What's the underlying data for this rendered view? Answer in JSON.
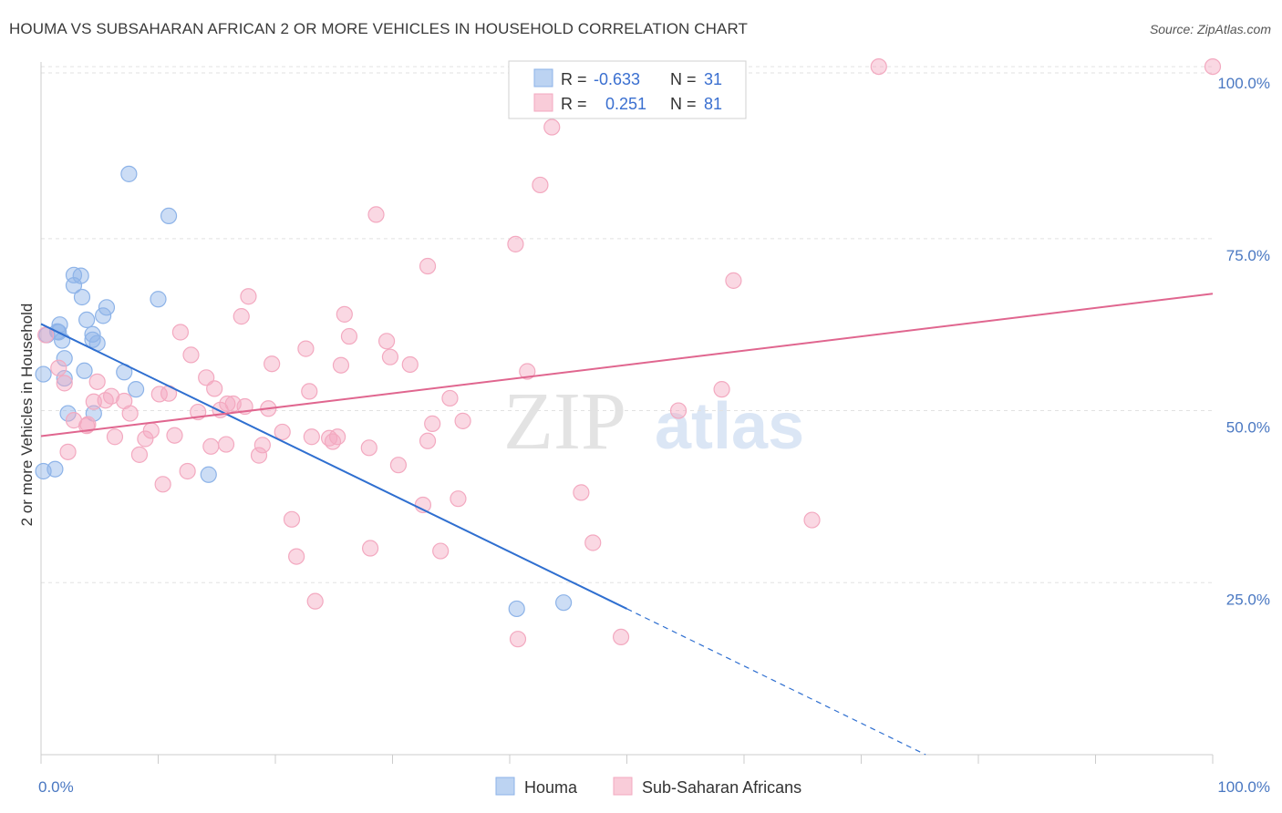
{
  "title": "HOUMA VS SUBSAHARAN AFRICAN 2 OR MORE VEHICLES IN HOUSEHOLD CORRELATION CHART",
  "source": "Source: ZipAtlas.com",
  "watermark": {
    "zip": "ZIP",
    "atlas": "atlas"
  },
  "chart_data": {
    "type": "scatter",
    "ylabel": "2 or more Vehicles in Household",
    "xlim": [
      0,
      100
    ],
    "ylim": [
      0,
      102
    ],
    "x_tick_labels": [
      {
        "value": 0,
        "label": "0.0%"
      },
      {
        "value": 100,
        "label": "100.0%"
      }
    ],
    "y_tick_labels": [
      {
        "value": 25,
        "label": "25.0%"
      },
      {
        "value": 50,
        "label": "50.0%"
      },
      {
        "value": 75,
        "label": "75.0%"
      },
      {
        "value": 100,
        "label": "100.0%"
      }
    ],
    "legend_stats": [
      {
        "r_label": "R =",
        "r": "-0.633",
        "n_label": "N =",
        "n": "31"
      },
      {
        "r_label": "R =",
        "r": "0.251",
        "n_label": "N =",
        "n": "81"
      }
    ],
    "series": [
      {
        "name": "Houma",
        "color": "#8db3e8",
        "line_color": "#2f6fd0",
        "trend": {
          "x0": 0,
          "y0": 62.6,
          "x1": 50,
          "y1": 21.2,
          "dash_to_x": 75.5,
          "dash_to_y": 0
        },
        "points": [
          [
            0.2,
            41.2
          ],
          [
            0.2,
            55.3
          ],
          [
            1.2,
            41.5
          ],
          [
            1.4,
            61.5
          ],
          [
            1.5,
            61.4
          ],
          [
            1.6,
            62.5
          ],
          [
            1.8,
            60.2
          ],
          [
            2.0,
            57.6
          ],
          [
            2.0,
            54.7
          ],
          [
            2.3,
            49.6
          ],
          [
            2.8,
            68.2
          ],
          [
            2.8,
            69.7
          ],
          [
            3.4,
            69.6
          ],
          [
            3.5,
            66.5
          ],
          [
            3.7,
            55.8
          ],
          [
            3.9,
            63.2
          ],
          [
            4.4,
            60.3
          ],
          [
            4.4,
            61.1
          ],
          [
            4.5,
            49.6
          ],
          [
            4.8,
            59.8
          ],
          [
            5.3,
            63.8
          ],
          [
            5.6,
            65.0
          ],
          [
            7.1,
            55.6
          ],
          [
            7.5,
            84.4
          ],
          [
            8.1,
            53.1
          ],
          [
            10.0,
            66.2
          ],
          [
            10.9,
            78.3
          ],
          [
            14.3,
            40.7
          ],
          [
            40.6,
            21.2
          ],
          [
            44.6,
            22.1
          ],
          [
            0.5,
            61.0
          ]
        ]
      },
      {
        "name": "Sub-Saharan Africans",
        "color": "#f3a9c0",
        "line_color": "#e0668f",
        "trend": {
          "x0": 0,
          "y0": 46.3,
          "x1": 100,
          "y1": 67.0
        },
        "points": [
          [
            0.4,
            61.0
          ],
          [
            1.5,
            56.2
          ],
          [
            2.0,
            54.0
          ],
          [
            2.3,
            44.0
          ],
          [
            2.8,
            48.6
          ],
          [
            3.9,
            47.8
          ],
          [
            4.5,
            51.3
          ],
          [
            4.8,
            54.2
          ],
          [
            5.5,
            51.5
          ],
          [
            6.0,
            52.1
          ],
          [
            6.3,
            46.2
          ],
          [
            7.1,
            51.4
          ],
          [
            7.6,
            49.6
          ],
          [
            8.4,
            43.6
          ],
          [
            8.9,
            45.9
          ],
          [
            9.4,
            47.1
          ],
          [
            10.1,
            52.4
          ],
          [
            10.4,
            39.3
          ],
          [
            10.9,
            52.5
          ],
          [
            11.4,
            46.4
          ],
          [
            11.9,
            61.4
          ],
          [
            12.5,
            41.2
          ],
          [
            12.8,
            58.1
          ],
          [
            13.4,
            49.8
          ],
          [
            14.1,
            54.8
          ],
          [
            14.5,
            44.8
          ],
          [
            14.8,
            53.2
          ],
          [
            15.3,
            50.1
          ],
          [
            15.8,
            45.1
          ],
          [
            16.4,
            51.0
          ],
          [
            17.1,
            63.7
          ],
          [
            17.4,
            50.6
          ],
          [
            17.7,
            66.6
          ],
          [
            18.6,
            43.5
          ],
          [
            18.9,
            45.0
          ],
          [
            19.4,
            50.3
          ],
          [
            19.7,
            56.8
          ],
          [
            20.6,
            46.9
          ],
          [
            21.4,
            34.2
          ],
          [
            21.8,
            28.8
          ],
          [
            22.6,
            59.0
          ],
          [
            22.9,
            52.8
          ],
          [
            23.1,
            46.2
          ],
          [
            23.4,
            22.3
          ],
          [
            24.6,
            46.0
          ],
          [
            24.9,
            45.5
          ],
          [
            25.3,
            46.2
          ],
          [
            25.6,
            56.6
          ],
          [
            25.9,
            64.0
          ],
          [
            26.3,
            60.8
          ],
          [
            28.0,
            44.6
          ],
          [
            28.1,
            30.0
          ],
          [
            28.6,
            78.5
          ],
          [
            29.5,
            60.1
          ],
          [
            29.8,
            57.8
          ],
          [
            30.5,
            42.1
          ],
          [
            31.5,
            56.7
          ],
          [
            32.6,
            36.3
          ],
          [
            33.0,
            71.0
          ],
          [
            33.0,
            45.6
          ],
          [
            33.4,
            48.1
          ],
          [
            34.1,
            29.6
          ],
          [
            34.9,
            51.8
          ],
          [
            35.6,
            37.2
          ],
          [
            40.5,
            74.2
          ],
          [
            40.7,
            16.8
          ],
          [
            41.5,
            55.7
          ],
          [
            42.6,
            82.8
          ],
          [
            43.6,
            91.2
          ],
          [
            46.1,
            38.1
          ],
          [
            47.1,
            30.8
          ],
          [
            49.5,
            17.1
          ],
          [
            54.4,
            50.0
          ],
          [
            58.1,
            53.1
          ],
          [
            59.1,
            68.9
          ],
          [
            65.8,
            34.1
          ],
          [
            71.5,
            100.0
          ],
          [
            100.0,
            100.0
          ],
          [
            4.0,
            48.0
          ],
          [
            15.9,
            51.0
          ],
          [
            36.0,
            48.5
          ]
        ]
      }
    ]
  }
}
